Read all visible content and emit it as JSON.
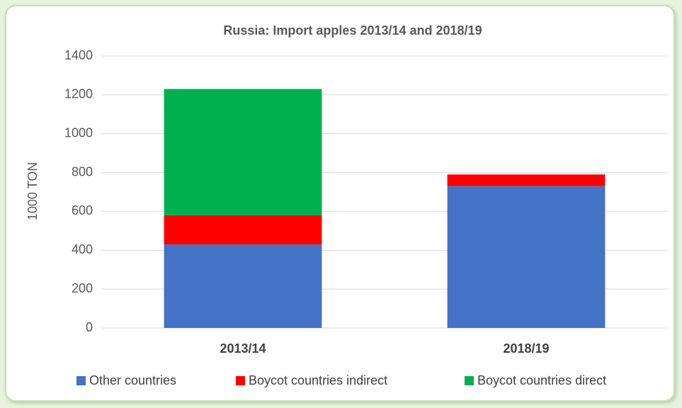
{
  "chart_data": {
    "type": "stacked_bar",
    "title": "Russia: Import apples 2013/14 and 2018/19",
    "y_label": "1000 TON",
    "categories": [
      "2013/14",
      "2018/19"
    ],
    "series": [
      {
        "name": "Other countries",
        "color": "#4472c4",
        "values": [
          430,
          730
        ]
      },
      {
        "name": "Boycot countries indirect",
        "color": "#ff0000",
        "values": [
          150,
          60
        ]
      },
      {
        "name": "Boycot countries direct",
        "color": "#00b050",
        "values": [
          650,
          0
        ]
      }
    ],
    "ylim": [
      0,
      1400
    ],
    "yticks": [
      0,
      200,
      400,
      600,
      800,
      1000,
      1200,
      1400
    ],
    "grid": true,
    "legend": "bottom"
  }
}
